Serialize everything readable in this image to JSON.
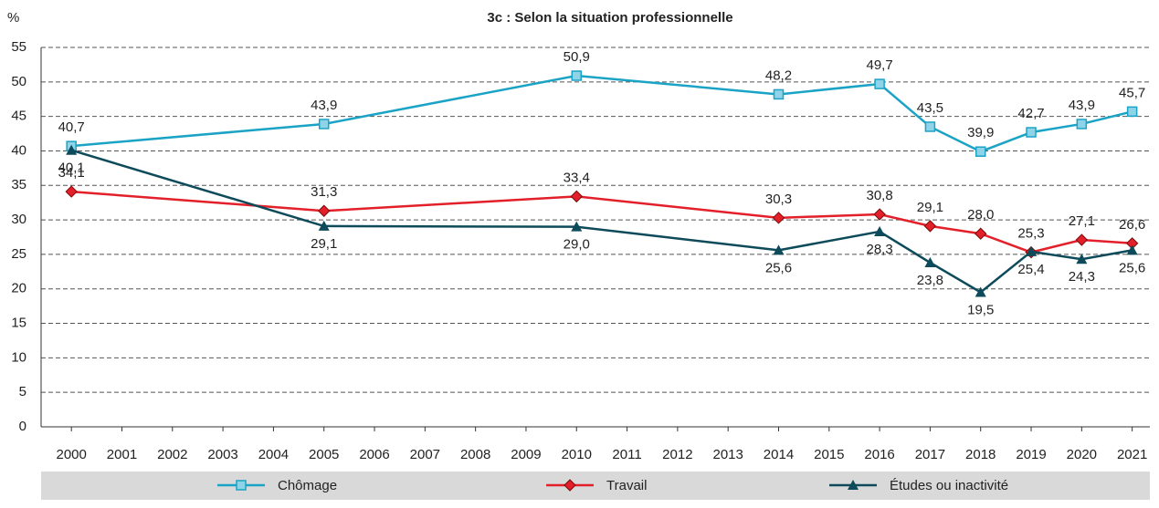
{
  "chart_data": {
    "type": "line",
    "title": "3c : Selon la situation professionnelle",
    "y_label": "%",
    "x": [
      2000,
      2005,
      2010,
      2014,
      2016,
      2017,
      2018,
      2019,
      2020,
      2021
    ],
    "xlim": [
      1999.4,
      2021.35
    ],
    "xticks": [
      2000,
      2001,
      2002,
      2003,
      2004,
      2005,
      2006,
      2007,
      2008,
      2009,
      2010,
      2011,
      2012,
      2013,
      2014,
      2015,
      2016,
      2017,
      2018,
      2019,
      2020,
      2021
    ],
    "ylim": [
      0,
      55
    ],
    "yticks": [
      0,
      5,
      10,
      15,
      20,
      25,
      30,
      35,
      40,
      45,
      50,
      55
    ],
    "grid": true,
    "legend": "bottom",
    "series": [
      {
        "name": "Chômage",
        "color": "#1ba3c6",
        "marker": "square",
        "values": [
          40.7,
          43.9,
          50.9,
          48.2,
          49.7,
          43.5,
          39.9,
          42.7,
          43.9,
          45.7
        ],
        "value_labels": [
          "40,7",
          "43,9",
          "50,9",
          "48,2",
          "49,7",
          "43,5",
          "39,9",
          "42,7",
          "43,9",
          "45,7"
        ]
      },
      {
        "name": "Travail",
        "color": "#e3202a",
        "marker": "diamond",
        "values": [
          34.1,
          31.3,
          33.4,
          30.3,
          30.8,
          29.1,
          28.0,
          25.3,
          27.1,
          26.6
        ],
        "value_labels": [
          "34,1",
          "31,3",
          "33,4",
          "30,3",
          "30,8",
          "29,1",
          "28,0",
          "25,3",
          "27,1",
          "26,6"
        ]
      },
      {
        "name": "Études ou inactivité",
        "color": "#0d4a5a",
        "marker": "triangle",
        "values": [
          40.1,
          29.1,
          29.0,
          25.6,
          28.3,
          23.8,
          19.5,
          25.4,
          24.3,
          25.6
        ],
        "value_labels": [
          "40,1",
          "29,1",
          "29,0",
          "25,6",
          "28,3",
          "23,8",
          "19,5",
          "25,4",
          "24,3",
          "25,6"
        ]
      }
    ]
  }
}
